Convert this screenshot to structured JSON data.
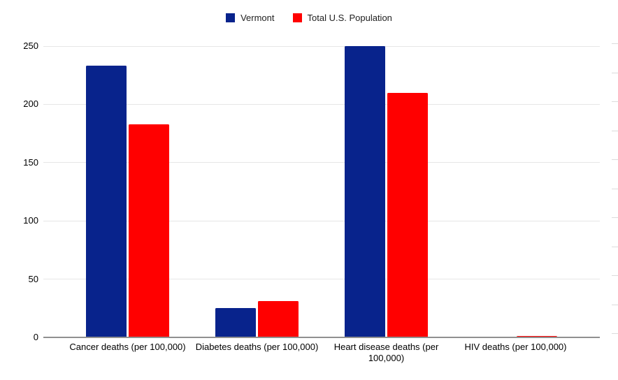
{
  "chart_data": {
    "type": "bar",
    "title": "",
    "categories": [
      "Cancer deaths (per 100,000)",
      "Diabetes deaths (per 100,000)",
      "Heart disease deaths (per 100,000)",
      "HIV deaths (per 100,000)"
    ],
    "series": [
      {
        "name": "Vermont",
        "color": "#08238c",
        "values": [
          233,
          25,
          250,
          0
        ]
      },
      {
        "name": "Total U.S. Population",
        "color": "#ff0000",
        "values": [
          183,
          31,
          210,
          1.5
        ]
      }
    ],
    "ylim": [
      0,
      250
    ],
    "yticks": [
      0,
      50,
      100,
      150,
      200,
      250
    ],
    "grid": true,
    "legend_position": "top",
    "xlabel": "",
    "ylabel": ""
  },
  "colors": {
    "background": "#ffffff",
    "gridline": "#e6e6e6",
    "axis_line": "#909090",
    "tick_text": "#000000",
    "legend_text": "#212121",
    "spreadsheet_row_line": "#dcdcdc"
  }
}
